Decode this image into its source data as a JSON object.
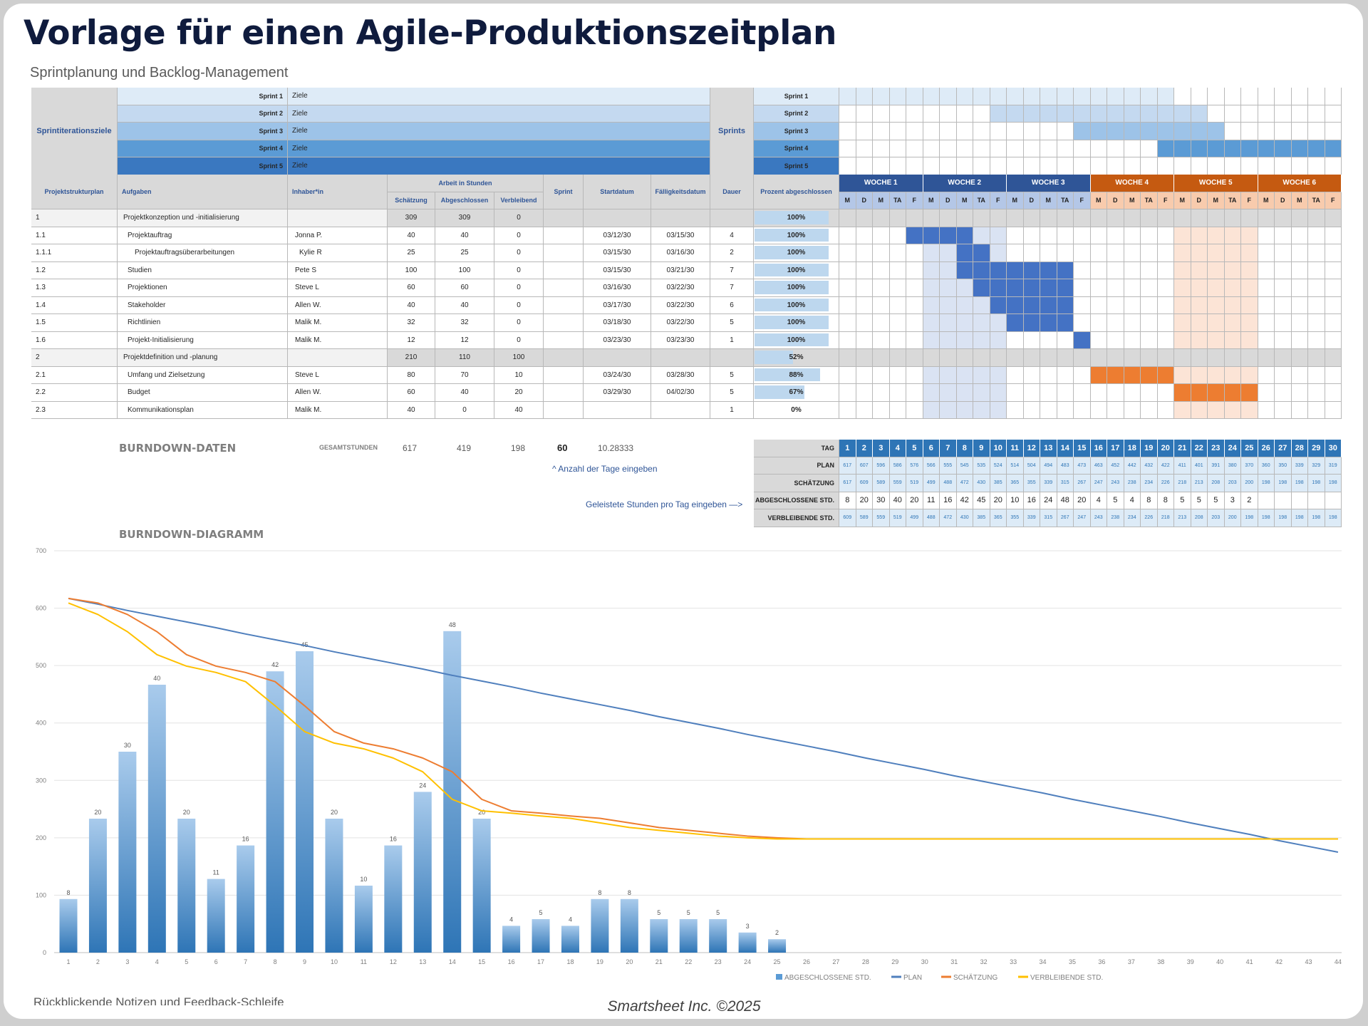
{
  "title": "Vorlage für einen Agile-Produktionszeitplan",
  "subtitle": "Sprintplanung und Backlog-Management",
  "sprint_goals": {
    "label": "Sprintiterationsziele",
    "sprints_label": "Sprints",
    "rows": [
      {
        "name": "Sprint 1",
        "goal": "Ziele",
        "color": "#deebf7",
        "start_day": 1,
        "end_day": 20
      },
      {
        "name": "Sprint 2",
        "goal": "Ziele",
        "color": "#c4d9f0",
        "start_day": 10,
        "end_day": 22
      },
      {
        "name": "Sprint 3",
        "goal": "Ziele",
        "color": "#9dc3e8",
        "start_day": 15,
        "end_day": 23
      },
      {
        "name": "Sprint 4",
        "goal": "Ziele",
        "color": "#5b9bd5",
        "start_day": 20,
        "end_day": 30
      },
      {
        "name": "Sprint 5",
        "goal": "Ziele",
        "color": "#3a78c0",
        "start_day": null,
        "end_day": null
      }
    ]
  },
  "task_table": {
    "headers": {
      "wbs": "Projektstrukturplan",
      "task": "Aufgaben",
      "owner": "Inhaber*in",
      "work_hours": "Arbeit in Stunden",
      "estimate": "Schätzung",
      "completed": "Abgeschlossen",
      "remaining": "Verbleibend",
      "sprint": "Sprint",
      "start": "Startdatum",
      "due": "Fälligkeitsdatum",
      "duration": "Dauer",
      "percent": "Prozent abgeschlossen"
    },
    "weeks": [
      {
        "label": "WOCHE 1",
        "color": "#2f5597",
        "day_color": "#b4c7e7"
      },
      {
        "label": "WOCHE 2",
        "color": "#2f5597",
        "day_color": "#b4c7e7"
      },
      {
        "label": "WOCHE 3",
        "color": "#2f5597",
        "day_color": "#b4c7e7"
      },
      {
        "label": "WOCHE 4",
        "color": "#c55a11",
        "day_color": "#f8cbad"
      },
      {
        "label": "WOCHE 5",
        "color": "#c55a11",
        "day_color": "#f8cbad"
      },
      {
        "label": "WOCHE 6",
        "color": "#c55a11",
        "day_color": "#f8cbad"
      }
    ],
    "days": [
      "M",
      "D",
      "M",
      "TA",
      "F"
    ],
    "highlight_weeks": [
      {
        "week": 2,
        "color": "#dae3f3"
      },
      {
        "week": 5,
        "color": "#fce4d6"
      }
    ],
    "rows": [
      {
        "wbs": "1",
        "task": "Projektkonzeption und -initialisierung",
        "owner": "",
        "estimate": "309",
        "completed": "309",
        "remaining": "0",
        "sprint": "",
        "start": "",
        "due": "",
        "duration": "",
        "percent": 100,
        "percent_label": "100%",
        "group": true
      },
      {
        "wbs": "1.1",
        "task": "Projektauftrag",
        "owner": "Jonna P.",
        "estimate": "40",
        "completed": "40",
        "remaining": "0",
        "sprint": "",
        "start": "03/12/30",
        "due": "03/15/30",
        "duration": "4",
        "percent": 100,
        "percent_label": "100%",
        "bar": [
          5,
          8
        ],
        "bar_color": "#4472c4"
      },
      {
        "wbs": "1.1.1",
        "task": "Projektauftragsüberarbeitungen",
        "owner": "Kylie R",
        "estimate": "25",
        "completed": "25",
        "remaining": "0",
        "sprint": "",
        "start": "03/15/30",
        "due": "03/16/30",
        "duration": "2",
        "percent": 100,
        "percent_label": "100%",
        "bar": [
          8,
          9
        ],
        "bar_color": "#4472c4",
        "indent": 2
      },
      {
        "wbs": "1.2",
        "task": "Studien",
        "owner": "Pete S",
        "estimate": "100",
        "completed": "100",
        "remaining": "0",
        "sprint": "",
        "start": "03/15/30",
        "due": "03/21/30",
        "duration": "7",
        "percent": 100,
        "percent_label": "100%",
        "bar": [
          8,
          14
        ],
        "bar_color": "#4472c4"
      },
      {
        "wbs": "1.3",
        "task": "Projektionen",
        "owner": "Steve L",
        "estimate": "60",
        "completed": "60",
        "remaining": "0",
        "sprint": "",
        "start": "03/16/30",
        "due": "03/22/30",
        "duration": "7",
        "percent": 100,
        "percent_label": "100%",
        "bar": [
          9,
          14
        ],
        "bar_color": "#4472c4"
      },
      {
        "wbs": "1.4",
        "task": "Stakeholder",
        "owner": "Allen W.",
        "estimate": "40",
        "completed": "40",
        "remaining": "0",
        "sprint": "",
        "start": "03/17/30",
        "due": "03/22/30",
        "duration": "6",
        "percent": 100,
        "percent_label": "100%",
        "bar": [
          10,
          14
        ],
        "bar_color": "#4472c4"
      },
      {
        "wbs": "1.5",
        "task": "Richtlinien",
        "owner": "Malik M.",
        "estimate": "32",
        "completed": "32",
        "remaining": "0",
        "sprint": "",
        "start": "03/18/30",
        "due": "03/22/30",
        "duration": "5",
        "percent": 100,
        "percent_label": "100%",
        "bar": [
          11,
          14
        ],
        "bar_color": "#4472c4"
      },
      {
        "wbs": "1.6",
        "task": "Projekt-Initialisierung",
        "owner": "Malik M.",
        "estimate": "12",
        "completed": "12",
        "remaining": "0",
        "sprint": "",
        "start": "03/23/30",
        "due": "03/23/30",
        "duration": "1",
        "percent": 100,
        "percent_label": "100%",
        "bar": [
          15,
          15
        ],
        "bar_color": "#4472c4"
      },
      {
        "wbs": "2",
        "task": "Projektdefinition und -planung",
        "owner": "",
        "estimate": "210",
        "completed": "110",
        "remaining": "100",
        "sprint": "",
        "start": "",
        "due": "",
        "duration": "",
        "percent": 52,
        "percent_label": "52%",
        "group": true
      },
      {
        "wbs": "2.1",
        "task": "Umfang und Zielsetzung",
        "owner": "Steve L",
        "estimate": "80",
        "completed": "70",
        "remaining": "10",
        "sprint": "",
        "start": "03/24/30",
        "due": "03/28/30",
        "duration": "5",
        "percent": 88,
        "percent_label": "88%",
        "bar": [
          16,
          20
        ],
        "bar_color": "#ed7d31"
      },
      {
        "wbs": "2.2",
        "task": "Budget",
        "owner": "Allen W.",
        "estimate": "60",
        "completed": "40",
        "remaining": "20",
        "sprint": "",
        "start": "03/29/30",
        "due": "04/02/30",
        "duration": "5",
        "percent": 67,
        "percent_label": "67%",
        "bar": [
          21,
          25
        ],
        "bar_color": "#ed7d31"
      },
      {
        "wbs": "2.3",
        "task": "Kommunikationsplan",
        "owner": "Malik M.",
        "estimate": "40",
        "completed": "0",
        "remaining": "40",
        "sprint": "",
        "start": "",
        "due": "",
        "duration": "1",
        "percent": 0,
        "percent_label": "0%"
      }
    ]
  },
  "burndown": {
    "section_label": "BURNDOWN-DATEN",
    "total_label": "GESAMTSTUNDEN",
    "total_estimate": "617",
    "total_completed": "419",
    "total_remaining": "198",
    "days_count": "60",
    "per_day": "10.28333",
    "days_hint": "^ Anzahl der Tage eingeben",
    "hours_hint": "Geleistete Stunden pro Tag eingeben —>",
    "row_labels": {
      "day": "TAG",
      "plan": "PLAN",
      "estimate": "SCHÄTZUNG",
      "completed": "ABGESCHLOSSENE STD.",
      "remaining": "VERBLEIBENDE STD."
    },
    "days": [
      "1",
      "2",
      "3",
      "4",
      "5",
      "6",
      "7",
      "8",
      "9",
      "10",
      "11",
      "12",
      "13",
      "14",
      "15",
      "16",
      "17",
      "18",
      "19",
      "20",
      "21",
      "22",
      "23",
      "24",
      "25",
      "26",
      "27",
      "28",
      "29",
      "30"
    ],
    "plan": [
      "617",
      "607",
      "596",
      "586",
      "576",
      "566",
      "555",
      "545",
      "535",
      "524",
      "514",
      "504",
      "494",
      "483",
      "473",
      "463",
      "452",
      "442",
      "432",
      "422",
      "411",
      "401",
      "391",
      "380",
      "370",
      "360",
      "350",
      "339",
      "329",
      "319"
    ],
    "estimate": [
      "617",
      "609",
      "589",
      "559",
      "519",
      "499",
      "488",
      "472",
      "430",
      "385",
      "365",
      "355",
      "339",
      "315",
      "267",
      "247",
      "243",
      "238",
      "234",
      "226",
      "218",
      "213",
      "208",
      "203",
      "200",
      "198",
      "198",
      "198",
      "198",
      "198"
    ],
    "completed": [
      "8",
      "20",
      "30",
      "40",
      "20",
      "11",
      "16",
      "42",
      "45",
      "20",
      "10",
      "16",
      "24",
      "48",
      "20",
      "4",
      "5",
      "4",
      "8",
      "8",
      "5",
      "5",
      "5",
      "3",
      "2",
      "",
      "",
      "",
      "",
      ""
    ],
    "remaining": [
      "609",
      "589",
      "559",
      "519",
      "499",
      "488",
      "472",
      "430",
      "385",
      "365",
      "355",
      "339",
      "315",
      "267",
      "247",
      "243",
      "238",
      "234",
      "226",
      "218",
      "213",
      "208",
      "203",
      "200",
      "198",
      "198",
      "198",
      "198",
      "198",
      "198"
    ]
  },
  "chart_section_label": "BURNDOWN-DIAGRAMM",
  "chart_data": {
    "type": "bar+line",
    "title": "",
    "xlabel": "",
    "ylabel": "",
    "x": [
      1,
      2,
      3,
      4,
      5,
      6,
      7,
      8,
      9,
      10,
      11,
      12,
      13,
      14,
      15,
      16,
      17,
      18,
      19,
      20,
      21,
      22,
      23,
      24,
      25,
      26,
      27,
      28,
      29,
      30,
      31,
      32,
      33,
      34,
      35,
      36,
      37,
      38,
      39,
      40,
      41,
      42,
      43,
      44
    ],
    "ylim": [
      0,
      700
    ],
    "yticks": [
      0,
      100,
      200,
      300,
      400,
      500,
      600,
      700
    ],
    "y2lim": [
      0,
      60
    ],
    "grid": true,
    "legend": "bottom-right",
    "bars": {
      "name": "ABGESCHLOSSENE STD.",
      "axis": "secondary",
      "color": "#5b9bd5",
      "values": [
        8,
        20,
        30,
        40,
        20,
        11,
        16,
        42,
        45,
        20,
        10,
        16,
        24,
        48,
        20,
        4,
        5,
        4,
        8,
        8,
        5,
        5,
        5,
        3,
        2
      ]
    },
    "series": [
      {
        "name": "PLAN",
        "color": "#4f7fbd",
        "values": [
          617,
          607,
          596,
          586,
          576,
          566,
          555,
          545,
          535,
          524,
          514,
          504,
          494,
          483,
          473,
          463,
          452,
          442,
          432,
          422,
          411,
          401,
          391,
          380,
          370,
          360,
          350,
          339,
          329,
          319,
          308,
          298,
          288,
          278,
          267,
          257,
          247,
          237,
          226,
          216,
          206,
          195,
          185,
          175
        ]
      },
      {
        "name": "SCHÄTZUNG",
        "color": "#ed7d31",
        "values": [
          617,
          609,
          589,
          559,
          519,
          499,
          488,
          472,
          430,
          385,
          365,
          355,
          339,
          315,
          267,
          247,
          243,
          238,
          234,
          226,
          218,
          213,
          208,
          203,
          200,
          198,
          198,
          198,
          198,
          198,
          198,
          198,
          198,
          198,
          198,
          198,
          198,
          198,
          198,
          198,
          198,
          198,
          198,
          198
        ]
      },
      {
        "name": "VERBLEIBENDE STD.",
        "color": "#ffc000",
        "values": [
          609,
          589,
          559,
          519,
          499,
          488,
          472,
          430,
          385,
          365,
          355,
          339,
          315,
          267,
          247,
          243,
          238,
          234,
          226,
          218,
          213,
          208,
          203,
          200,
          198,
          198,
          198,
          198,
          198,
          198,
          198,
          198,
          198,
          198,
          198,
          198,
          198,
          198,
          198,
          198,
          198,
          198,
          198,
          198
        ]
      }
    ]
  },
  "retro_label": "Rückblickende Notizen und Feedback-Schleife",
  "footer": "Smartsheet Inc. ©2025"
}
